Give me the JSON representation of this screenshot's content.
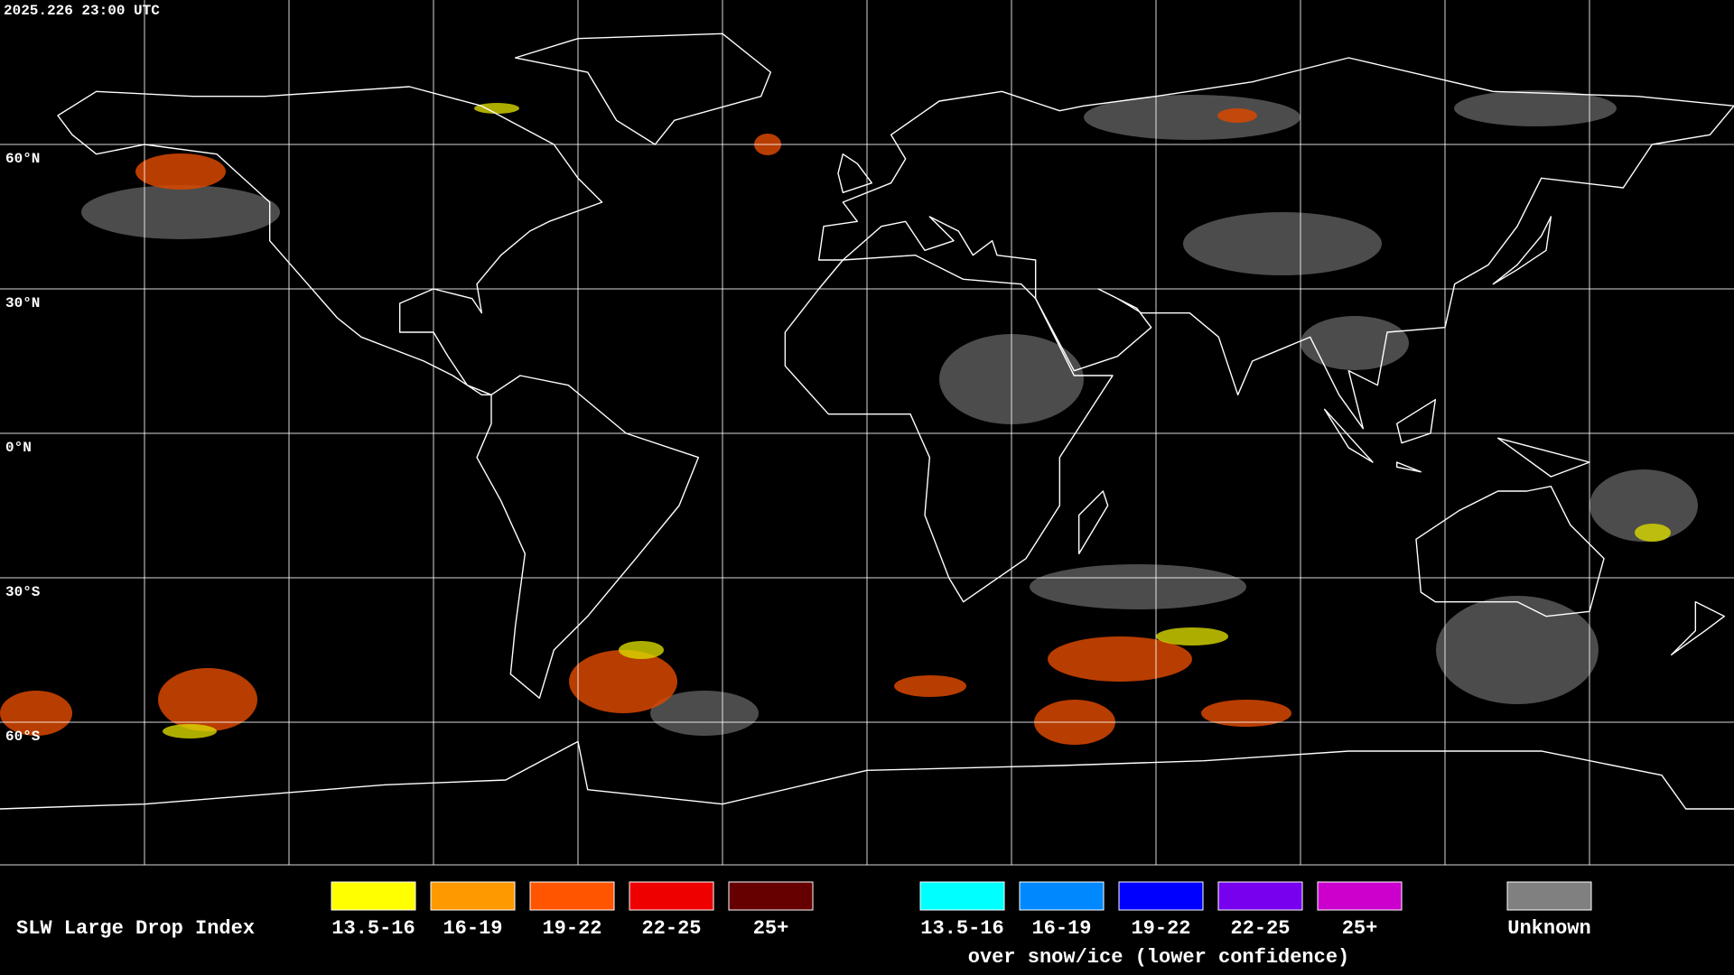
{
  "header": {
    "timestamp": "2025.226 23:00 UTC"
  },
  "map": {
    "lat_labels": [
      "60°N",
      "30°N",
      "0°N",
      "30°S",
      "60°S"
    ]
  },
  "legend": {
    "title": "SLW Large Drop Index",
    "normal": [
      {
        "label": "13.5-16",
        "color": "#ffff00"
      },
      {
        "label": "16-19",
        "color": "#ff9900"
      },
      {
        "label": "19-22",
        "color": "#ff5500"
      },
      {
        "label": "22-25",
        "color": "#ee0000"
      },
      {
        "label": "25+",
        "color": "#660000"
      }
    ],
    "snow_ice": [
      {
        "label": "13.5-16",
        "color": "#00ffff"
      },
      {
        "label": "16-19",
        "color": "#0088ff"
      },
      {
        "label": "19-22",
        "color": "#0000ff"
      },
      {
        "label": "22-25",
        "color": "#7700ee"
      },
      {
        "label": "25+",
        "color": "#cc00cc"
      }
    ],
    "snow_ice_caption": "over snow/ice (lower confidence)",
    "unknown": {
      "label": "Unknown",
      "color": "#808080"
    }
  }
}
